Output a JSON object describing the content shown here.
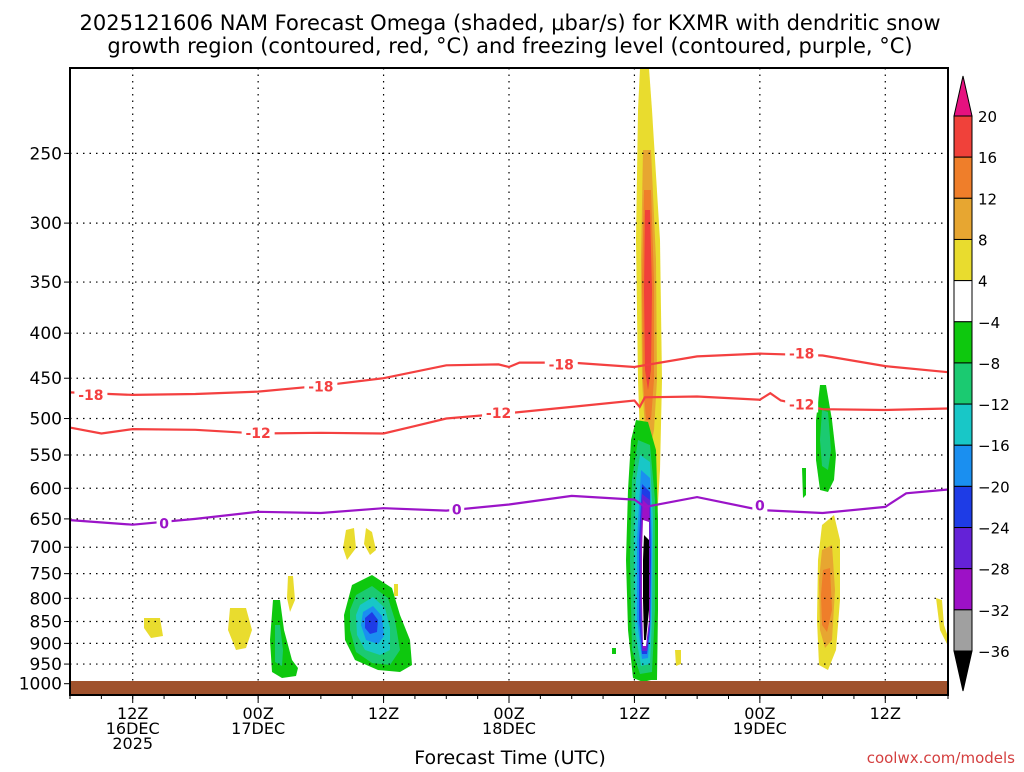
{
  "title": {
    "line1": "2025121606 NAM Forecast Omega (shaded, μbar/s) for KXMR with dendritic snow",
    "line2": "growth region (contoured, red, °C) and freezing level (contoured, purple, °C)"
  },
  "xlabel": "Forecast Time (UTC)",
  "watermark": "coolwx.com/models",
  "colors": {
    "dendritic_contour": "#f44040",
    "freezing_contour": "#9b14c8",
    "ground": "#a0522d",
    "grid": "#000000",
    "watermark": "#d43f3f"
  },
  "chart_data": {
    "type": "heatmap",
    "title": "2025121606 NAM Forecast Omega (shaded, μbar/s) for KXMR with dendritic snow growth region (contoured, red, °C) and freezing level (contoured, purple, °C)",
    "xlabel": "Forecast Time (UTC)",
    "ylabel": "",
    "y_scale": "log (pressure, hPa)",
    "y_axis_inverted": true,
    "ylim": [
      1030,
      200
    ],
    "grid": true,
    "x_ticks": [
      {
        "hour": 6,
        "lines": [
          "12Z",
          "16DEC",
          "2025"
        ]
      },
      {
        "hour": 18,
        "lines": [
          "00Z",
          "17DEC"
        ]
      },
      {
        "hour": 30,
        "lines": [
          "12Z"
        ]
      },
      {
        "hour": 42,
        "lines": [
          "00Z",
          "18DEC"
        ]
      },
      {
        "hour": 54,
        "lines": [
          "12Z"
        ]
      },
      {
        "hour": 66,
        "lines": [
          "00Z",
          "19DEC"
        ]
      },
      {
        "hour": 78,
        "lines": [
          "12Z"
        ]
      }
    ],
    "xlim_hours": [
      0,
      84
    ],
    "y_ticks": [
      250,
      300,
      350,
      400,
      450,
      500,
      550,
      600,
      650,
      700,
      750,
      800,
      850,
      900,
      950,
      1000
    ],
    "colorbar": {
      "label_values": [
        20,
        16,
        12,
        8,
        4,
        -4,
        -8,
        -12,
        -16,
        -20,
        -24,
        -28,
        -32,
        -36
      ],
      "bins": [
        {
          "range": "> 20",
          "color": "#e6117f"
        },
        {
          "range": "16 to 20",
          "color": "#f0413a"
        },
        {
          "range": "12 to 16",
          "color": "#ef7e2a"
        },
        {
          "range": "8 to 12",
          "color": "#e7a631"
        },
        {
          "range": "4 to 8",
          "color": "#e9dc2e"
        },
        {
          "range": "-4 to 4",
          "color": "#ffffff"
        },
        {
          "range": "-8 to -4",
          "color": "#0ec80e"
        },
        {
          "range": "-12 to -8",
          "color": "#1bca71"
        },
        {
          "range": "-16 to -12",
          "color": "#18c7c7"
        },
        {
          "range": "-20 to -16",
          "color": "#1a8ff0"
        },
        {
          "range": "-24 to -20",
          "color": "#1e3ce6"
        },
        {
          "range": "-28 to -24",
          "color": "#6422d7"
        },
        {
          "range": "-32 to -28",
          "color": "#9d11c6"
        },
        {
          "range": "-36 to -32",
          "color": "#a0a0a0"
        },
        {
          "range": "< -36",
          "color": "#000000"
        }
      ]
    },
    "contours": [
      {
        "name": "-18",
        "color": "#f44040",
        "points": [
          [
            0,
            467
          ],
          [
            6,
            470
          ],
          [
            12,
            469
          ],
          [
            18,
            466
          ],
          [
            24,
            459
          ],
          [
            30,
            450
          ],
          [
            36,
            435
          ],
          [
            41,
            434
          ],
          [
            42,
            437
          ],
          [
            43,
            432
          ],
          [
            48,
            432
          ],
          [
            54,
            437
          ],
          [
            60,
            425
          ],
          [
            66,
            422
          ],
          [
            72,
            424
          ],
          [
            78,
            436
          ],
          [
            84,
            443
          ]
        ],
        "labels": [
          [
            2,
            470
          ],
          [
            24,
            460
          ],
          [
            47,
            434
          ],
          [
            70,
            422
          ]
        ]
      },
      {
        "name": "-12",
        "color": "#f44040",
        "points": [
          [
            0,
            512
          ],
          [
            3,
            520
          ],
          [
            6,
            514
          ],
          [
            12,
            515
          ],
          [
            18,
            520
          ],
          [
            24,
            519
          ],
          [
            30,
            520
          ],
          [
            33,
            510
          ],
          [
            36,
            500
          ],
          [
            42,
            493
          ],
          [
            48,
            485
          ],
          [
            54,
            477
          ],
          [
            54.5,
            485
          ],
          [
            55,
            473
          ],
          [
            60,
            472
          ],
          [
            66,
            476
          ],
          [
            67,
            468
          ],
          [
            68,
            477
          ],
          [
            72,
            488
          ],
          [
            78,
            489
          ],
          [
            84,
            487
          ]
        ],
        "labels": [
          [
            18,
            519
          ],
          [
            41,
            493
          ],
          [
            70,
            482
          ]
        ]
      },
      {
        "name": "0",
        "color": "#9b14c8",
        "points": [
          [
            0,
            652
          ],
          [
            6,
            660
          ],
          [
            12,
            650
          ],
          [
            18,
            638
          ],
          [
            24,
            640
          ],
          [
            30,
            632
          ],
          [
            36,
            636
          ],
          [
            42,
            626
          ],
          [
            48,
            612
          ],
          [
            54,
            618
          ],
          [
            55,
            630
          ],
          [
            60,
            614
          ],
          [
            66,
            635
          ],
          [
            72,
            640
          ],
          [
            78,
            630
          ],
          [
            80,
            608
          ],
          [
            84,
            602
          ]
        ],
        "labels": [
          [
            9,
            658
          ],
          [
            37,
            634
          ],
          [
            66,
            628
          ]
        ]
      }
    ],
    "omega_regions": [
      {
        "bin": "4 to 8",
        "center": [
          54.6,
          400
        ],
        "note": "tall upper-level band from top to ~560 hPa"
      },
      {
        "bin": "16 to 20",
        "center": [
          54.6,
          360
        ]
      },
      {
        "bin": "-8 to -4",
        "center": [
          54.5,
          750
        ]
      },
      {
        "bin": "< -36",
        "center": [
          54.6,
          750
        ]
      },
      {
        "bin": "-12 to -8",
        "center": [
          28.5,
          860
        ]
      },
      {
        "bin": "-24 to -20",
        "center": [
          28.5,
          855
        ]
      },
      {
        "bin": "-8 to -4",
        "center": [
          20,
          900
        ]
      },
      {
        "bin": "-8 to -4",
        "center": [
          71.5,
          535
        ]
      },
      {
        "bin": "12 to 16",
        "center": [
          71.5,
          830
        ]
      },
      {
        "bin": "4 to 8",
        "center": [
          16.5,
          875
        ]
      },
      {
        "bin": "4 to 8",
        "center": [
          7.5,
          865
        ]
      },
      {
        "bin": "4 to 8",
        "center": [
          26.5,
          700
        ]
      }
    ]
  }
}
